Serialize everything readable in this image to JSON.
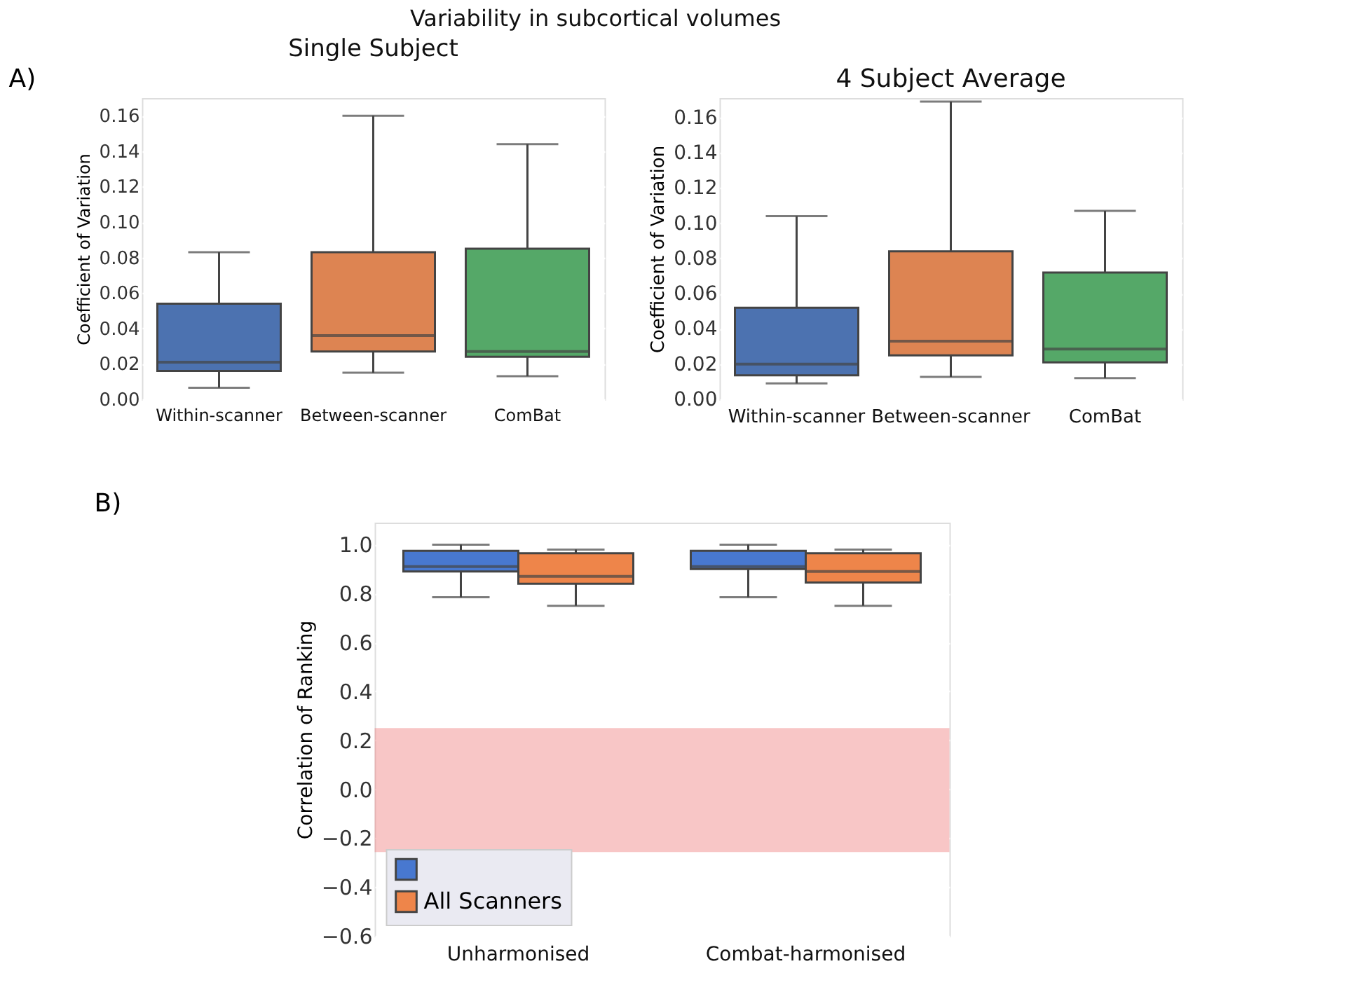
{
  "chart_data": [
    {
      "type": "box",
      "title": "Single Subject",
      "ylabel": "Coefficient of Variation",
      "annotations": [
        "Variability in subcortical volumes",
        "A)"
      ],
      "categories": [
        "Within-scanner",
        "Between-scanner",
        "ComBat"
      ],
      "colors": [
        "#4c72b0",
        "#dd8452",
        "#55a868"
      ],
      "boxes": [
        {
          "low": 0.0065,
          "q1": 0.016,
          "median": 0.021,
          "q3": 0.054,
          "high": 0.083
        },
        {
          "low": 0.015,
          "q1": 0.027,
          "median": 0.036,
          "q3": 0.083,
          "high": 0.16
        },
        {
          "low": 0.013,
          "q1": 0.024,
          "median": 0.027,
          "q3": 0.085,
          "high": 0.144
        }
      ],
      "ylim": [
        0,
        0.17
      ],
      "yticks": [
        {
          "value": 0,
          "label": "0.00"
        },
        {
          "value": 0.02,
          "label": "0.02"
        },
        {
          "value": 0.04,
          "label": "0.04"
        },
        {
          "value": 0.06,
          "label": "0.06"
        },
        {
          "value": 0.08,
          "label": "0.08"
        },
        {
          "value": 0.1,
          "label": "0.10"
        },
        {
          "value": 0.12,
          "label": "0.12"
        },
        {
          "value": 0.14,
          "label": "0.14"
        },
        {
          "value": 0.16,
          "label": "0.16"
        }
      ],
      "grid": "y"
    },
    {
      "type": "box",
      "title": "4 Subject Average",
      "ylabel": "Coefficient of Variation",
      "categories": [
        "Within-scanner",
        "Between-scanner",
        "ComBat"
      ],
      "colors": [
        "#4c72b0",
        "#dd8452",
        "#55a868"
      ],
      "boxes": [
        {
          "low": 0.009,
          "q1": 0.0136,
          "median": 0.02,
          "q3": 0.052,
          "high": 0.104
        },
        {
          "low": 0.0127,
          "q1": 0.025,
          "median": 0.033,
          "q3": 0.084,
          "high": 0.169
        },
        {
          "low": 0.012,
          "q1": 0.021,
          "median": 0.0285,
          "q3": 0.072,
          "high": 0.107
        }
      ],
      "ylim": [
        0,
        0.171
      ],
      "yticks": [
        {
          "value": 0,
          "label": "0.00"
        },
        {
          "value": 0.02,
          "label": "0.02"
        },
        {
          "value": 0.04,
          "label": "0.04"
        },
        {
          "value": 0.06,
          "label": "0.06"
        },
        {
          "value": 0.08,
          "label": "0.08"
        },
        {
          "value": 0.1,
          "label": "0.10"
        },
        {
          "value": 0.12,
          "label": "0.12"
        },
        {
          "value": 0.14,
          "label": "0.14"
        },
        {
          "value": 0.16,
          "label": "0.16"
        }
      ],
      "grid": "y"
    },
    {
      "type": "box",
      "ylabel": "Correlation of Ranking",
      "annotations": [
        "B)"
      ],
      "categories": [
        "Unharmonised",
        "Combat-harmonised"
      ],
      "series": [
        {
          "color": "#4878d0",
          "boxes": [
            {
              "low": 0.785,
              "q1": 0.89,
              "median": 0.91,
              "q3": 0.975,
              "high": 1.0
            },
            {
              "low": 0.785,
              "q1": 0.9,
              "median": 0.91,
              "q3": 0.975,
              "high": 1.0
            }
          ]
        },
        {
          "name": "All Scanners",
          "color": "#ee854a",
          "boxes": [
            {
              "low": 0.75,
              "q1": 0.84,
              "median": 0.87,
              "q3": 0.965,
              "high": 0.98
            },
            {
              "low": 0.75,
              "q1": 0.845,
              "median": 0.89,
              "q3": 0.965,
              "high": 0.98
            }
          ]
        }
      ],
      "bands": [
        {
          "axis": "y",
          "from": -0.257,
          "to": 0.25,
          "color": "#f08080"
        }
      ],
      "ylim": [
        -0.6,
        1.09
      ],
      "yticks": [
        {
          "value": -0.6,
          "label": "−0.6"
        },
        {
          "value": -0.4,
          "label": "−0.4"
        },
        {
          "value": -0.2,
          "label": "−0.2"
        },
        {
          "value": 0,
          "label": "0.0"
        },
        {
          "value": 0.2,
          "label": "0.2"
        },
        {
          "value": 0.4,
          "label": "0.4"
        },
        {
          "value": 0.6,
          "label": "0.6"
        },
        {
          "value": 0.8,
          "label": "0.8"
        },
        {
          "value": 1.0,
          "label": "1.0"
        }
      ],
      "grid": "y",
      "legend": "bottom left"
    }
  ]
}
